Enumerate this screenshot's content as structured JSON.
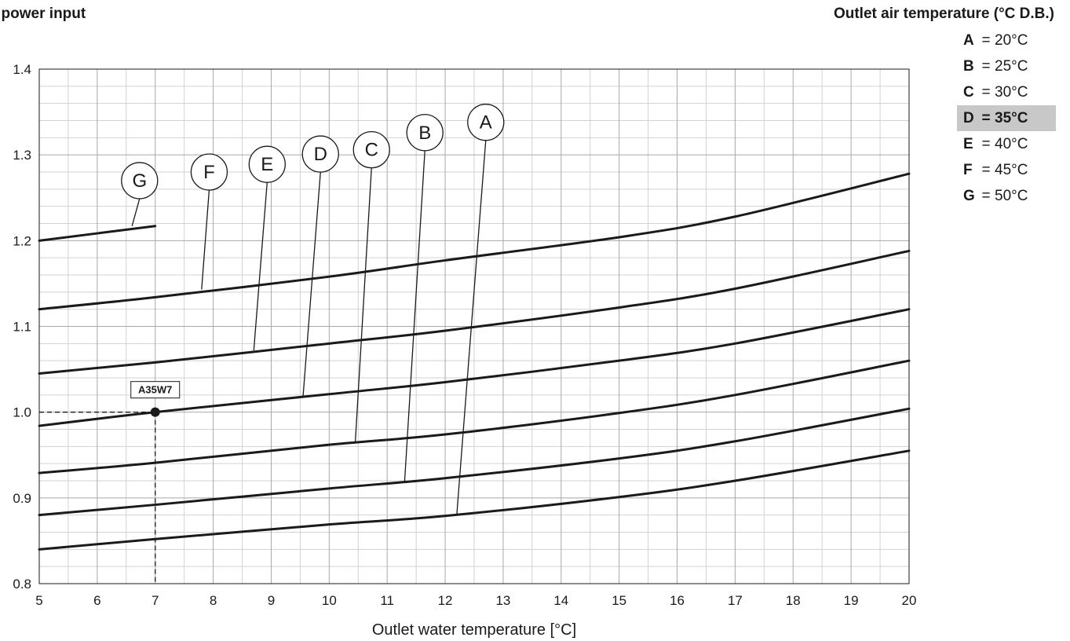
{
  "header": {
    "title": "l power input",
    "legend_title": "Outlet air temperature (°C D.B.)"
  },
  "legend": [
    {
      "letter": "A",
      "eq": "=",
      "value": "20°C",
      "highlight": false
    },
    {
      "letter": "B",
      "eq": "=",
      "value": "25°C",
      "highlight": false
    },
    {
      "letter": "C",
      "eq": "=",
      "value": "30°C",
      "highlight": false
    },
    {
      "letter": "D",
      "eq": "=",
      "value": "35°C",
      "highlight": true
    },
    {
      "letter": "E",
      "eq": "=",
      "value": "40°C",
      "highlight": false
    },
    {
      "letter": "F",
      "eq": "=",
      "value": "45°C",
      "highlight": false
    },
    {
      "letter": "G",
      "eq": "=",
      "value": "50°C",
      "highlight": false
    }
  ],
  "chart_data": {
    "type": "line",
    "xlabel": "Outlet water temperature [°C]",
    "ylabel": "",
    "xlim": [
      5,
      20
    ],
    "ylim": [
      0.8,
      1.4
    ],
    "x_ticks": [
      5,
      6,
      7,
      8,
      9,
      10,
      11,
      12,
      13,
      14,
      15,
      16,
      17,
      18,
      19,
      20
    ],
    "y_ticks": [
      0.8,
      0.9,
      1.0,
      1.1,
      1.2,
      1.3,
      1.4
    ],
    "y_tick_labels": [
      "0.8",
      "0.9",
      "1.0",
      "1.1",
      "1.2",
      "1.3",
      "1.4"
    ],
    "grid": true,
    "minor_grid_step": [
      0.5,
      0.02
    ],
    "line_color": "#1a1a1a",
    "series": [
      {
        "name": "A",
        "x": [
          5,
          7,
          10,
          12,
          15,
          17,
          20
        ],
        "y": [
          0.84,
          0.852,
          0.869,
          0.879,
          0.901,
          0.92,
          0.955
        ]
      },
      {
        "name": "B",
        "x": [
          5,
          7,
          10,
          12,
          15,
          17,
          20
        ],
        "y": [
          0.88,
          0.892,
          0.911,
          0.923,
          0.946,
          0.966,
          1.004
        ]
      },
      {
        "name": "C",
        "x": [
          5,
          7,
          10,
          12,
          15,
          17,
          20
        ],
        "y": [
          0.929,
          0.941,
          0.962,
          0.974,
          0.999,
          1.02,
          1.06
        ]
      },
      {
        "name": "D",
        "x": [
          5,
          7,
          10,
          12,
          15,
          17,
          20
        ],
        "y": [
          0.984,
          1.0,
          1.021,
          1.035,
          1.06,
          1.08,
          1.12
        ]
      },
      {
        "name": "E",
        "x": [
          5,
          7,
          10,
          12,
          15,
          17,
          20
        ],
        "y": [
          1.045,
          1.058,
          1.08,
          1.095,
          1.122,
          1.144,
          1.188
        ]
      },
      {
        "name": "F",
        "x": [
          5,
          7,
          10,
          12,
          15,
          17,
          20
        ],
        "y": [
          1.12,
          1.134,
          1.158,
          1.177,
          1.204,
          1.228,
          1.278
        ]
      },
      {
        "name": "G",
        "x": [
          5,
          7
        ],
        "y": [
          1.2,
          1.217
        ]
      }
    ],
    "callouts": [
      {
        "label": "A",
        "circle": [
          12.7,
          1.338
        ],
        "target": [
          12.2,
          0.88
        ]
      },
      {
        "label": "B",
        "circle": [
          11.65,
          1.326
        ],
        "target": [
          11.3,
          0.918
        ]
      },
      {
        "label": "C",
        "circle": [
          10.73,
          1.306
        ],
        "target": [
          10.45,
          0.965
        ]
      },
      {
        "label": "D",
        "circle": [
          9.85,
          1.301
        ],
        "target": [
          9.55,
          1.019
        ]
      },
      {
        "label": "E",
        "circle": [
          8.93,
          1.289
        ],
        "target": [
          8.7,
          1.072
        ]
      },
      {
        "label": "F",
        "circle": [
          7.93,
          1.28
        ],
        "target": [
          7.8,
          1.143
        ]
      },
      {
        "label": "G",
        "circle": [
          6.73,
          1.27
        ],
        "target": [
          6.6,
          1.217
        ]
      }
    ],
    "annotations": [
      {
        "label": "A35W7",
        "x": 7,
        "y": 1.0
      }
    ]
  }
}
